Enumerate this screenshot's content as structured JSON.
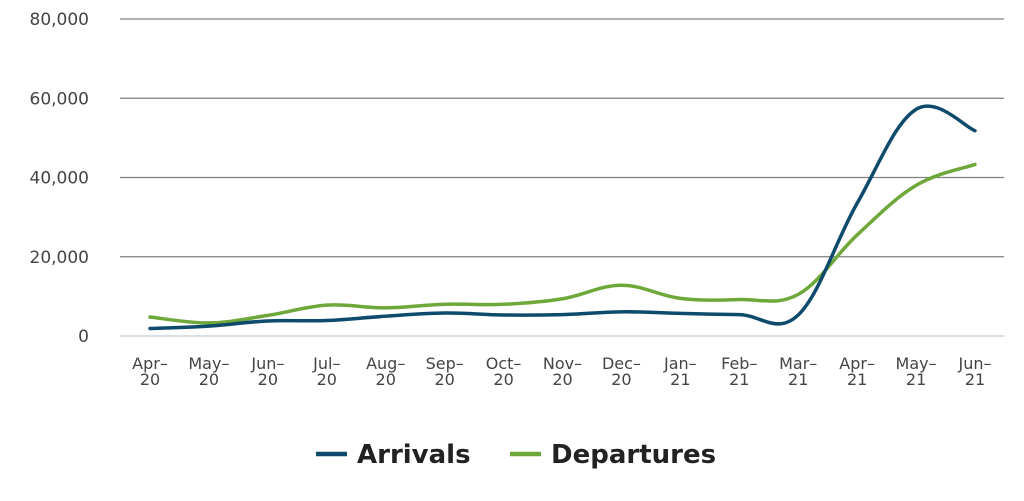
{
  "chart_data": {
    "type": "line",
    "title": "",
    "xlabel": "",
    "ylabel": "",
    "ylim": [
      0,
      80000
    ],
    "yticks": [
      {
        "value": 0,
        "label": "0"
      },
      {
        "value": 20000,
        "label": "20,000"
      },
      {
        "value": 40000,
        "label": "40,000"
      },
      {
        "value": 60000,
        "label": "60,000"
      },
      {
        "value": 80000,
        "label": "80,000"
      }
    ],
    "categories": [
      [
        "Apr–",
        "20"
      ],
      [
        "May–",
        "20"
      ],
      [
        "Jun–",
        "20"
      ],
      [
        "Jul–",
        "20"
      ],
      [
        "Aug–",
        "20"
      ],
      [
        "Sep–",
        "20"
      ],
      [
        "Oct–",
        "20"
      ],
      [
        "Nov–",
        "20"
      ],
      [
        "Dec–",
        "20"
      ],
      [
        "Jan–",
        "21"
      ],
      [
        "Feb–",
        "21"
      ],
      [
        "Mar–",
        "21"
      ],
      [
        "Apr–",
        "21"
      ],
      [
        "May–",
        "21"
      ],
      [
        "Jun–",
        "21"
      ]
    ],
    "grid": true,
    "legend": "bottom",
    "series": [
      {
        "name": "Arrivals",
        "color": "#0d4a6b",
        "values": [
          1900,
          2500,
          3800,
          3900,
          5000,
          5800,
          5300,
          5400,
          6100,
          5700,
          5400,
          5300,
          33500,
          57200,
          51800
        ]
      },
      {
        "name": "Departures",
        "color": "#6fa83a",
        "values": [
          4800,
          3300,
          5200,
          7800,
          7100,
          8000,
          8000,
          9400,
          12800,
          9500,
          9200,
          10500,
          25500,
          38000,
          43300
        ]
      }
    ]
  }
}
